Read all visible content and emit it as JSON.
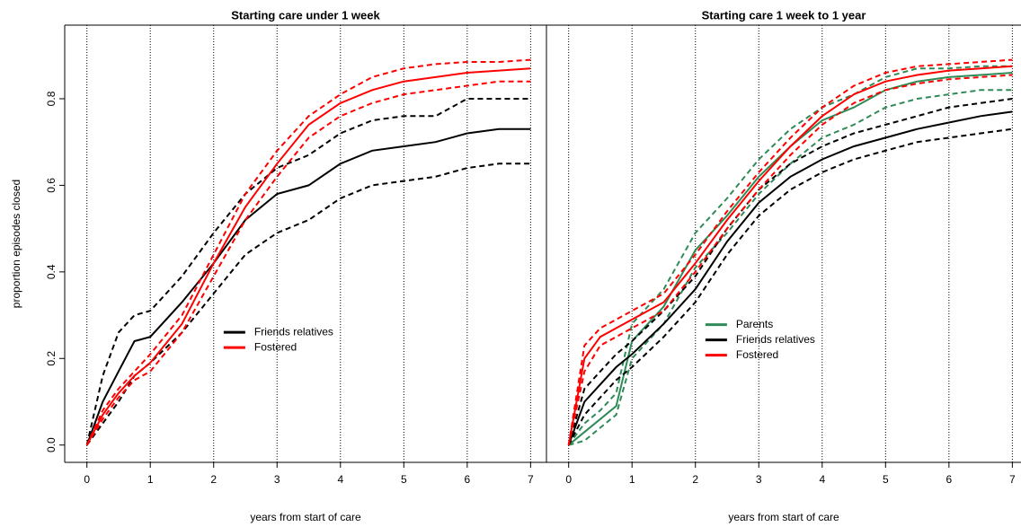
{
  "chart_data": [
    {
      "type": "line",
      "title": "Starting care under 1 week",
      "x_label": "years from start of care",
      "y_label": "proportion episodes closed",
      "x": [
        0,
        0.25,
        0.5,
        0.75,
        1,
        1.5,
        2,
        2.5,
        3,
        3.5,
        4,
        4.5,
        5,
        5.5,
        6,
        6.5,
        7
      ],
      "xlim": [
        -0.35,
        7.25
      ],
      "ylim": [
        -0.04,
        0.97
      ],
      "xticks": [
        0,
        1,
        2,
        3,
        4,
        5,
        6,
        7
      ],
      "yticks": [
        {
          "value": 0,
          "label": "0.0"
        },
        0.2,
        0.4,
        0.6,
        0.8
      ],
      "grid": "x",
      "legend": "center",
      "series": [
        {
          "name": "Friends relatives",
          "color": "#000000",
          "values": [
            0,
            0.1,
            0.17,
            0.24,
            0.25,
            0.33,
            0.42,
            0.52,
            0.58,
            0.6,
            0.65,
            0.68,
            0.69,
            0.7,
            0.72,
            0.73,
            0.73
          ],
          "lower": [
            0,
            0.05,
            0.1,
            0.16,
            0.19,
            0.26,
            0.35,
            0.44,
            0.49,
            0.52,
            0.57,
            0.6,
            0.61,
            0.62,
            0.64,
            0.65,
            0.65
          ],
          "upper": [
            0,
            0.16,
            0.26,
            0.3,
            0.31,
            0.39,
            0.49,
            0.58,
            0.64,
            0.67,
            0.72,
            0.75,
            0.76,
            0.76,
            0.8,
            0.8,
            0.8
          ]
        },
        {
          "name": "Fostered",
          "color": "#ff0000",
          "values": [
            0,
            0.07,
            0.12,
            0.16,
            0.19,
            0.28,
            0.42,
            0.55,
            0.65,
            0.74,
            0.79,
            0.82,
            0.84,
            0.85,
            0.86,
            0.865,
            0.87
          ],
          "lower": [
            0,
            0.06,
            0.11,
            0.15,
            0.17,
            0.26,
            0.39,
            0.52,
            0.62,
            0.71,
            0.76,
            0.79,
            0.81,
            0.82,
            0.83,
            0.84,
            0.84
          ],
          "upper": [
            0,
            0.08,
            0.13,
            0.17,
            0.21,
            0.3,
            0.44,
            0.58,
            0.68,
            0.76,
            0.81,
            0.85,
            0.87,
            0.88,
            0.885,
            0.885,
            0.89
          ]
        }
      ]
    },
    {
      "type": "line",
      "title": "Starting care 1 week to 1 year",
      "x_label": "years from start of care",
      "x": [
        0,
        0.25,
        0.5,
        0.75,
        1,
        1.5,
        2,
        2.5,
        3,
        3.5,
        4,
        4.5,
        5,
        5.5,
        6,
        6.5,
        7
      ],
      "xlim": [
        -0.35,
        7.25
      ],
      "ylim": [
        -0.04,
        0.97
      ],
      "xticks": [
        0,
        1,
        2,
        3,
        4,
        5,
        6,
        7
      ],
      "grid": "x",
      "legend": "center",
      "series": [
        {
          "name": "Parents",
          "color": "#2e8b57",
          "values": [
            0,
            0.03,
            0.06,
            0.09,
            0.24,
            0.32,
            0.45,
            0.53,
            0.62,
            0.69,
            0.75,
            0.78,
            0.82,
            0.84,
            0.85,
            0.855,
            0.86
          ],
          "lower": [
            0,
            0.01,
            0.04,
            0.07,
            0.2,
            0.28,
            0.41,
            0.49,
            0.58,
            0.65,
            0.71,
            0.74,
            0.78,
            0.8,
            0.81,
            0.82,
            0.82
          ],
          "upper": [
            0,
            0.05,
            0.08,
            0.12,
            0.28,
            0.36,
            0.49,
            0.57,
            0.66,
            0.73,
            0.78,
            0.81,
            0.85,
            0.87,
            0.87,
            0.875,
            0.875
          ]
        },
        {
          "name": "Friends relatives",
          "color": "#000000",
          "values": [
            0,
            0.1,
            0.14,
            0.18,
            0.21,
            0.28,
            0.36,
            0.47,
            0.56,
            0.62,
            0.66,
            0.69,
            0.71,
            0.73,
            0.745,
            0.76,
            0.77
          ],
          "lower": [
            0,
            0.07,
            0.11,
            0.15,
            0.18,
            0.25,
            0.33,
            0.44,
            0.53,
            0.59,
            0.63,
            0.66,
            0.68,
            0.7,
            0.71,
            0.72,
            0.73
          ],
          "upper": [
            0,
            0.13,
            0.17,
            0.21,
            0.24,
            0.31,
            0.39,
            0.5,
            0.59,
            0.65,
            0.69,
            0.72,
            0.74,
            0.76,
            0.78,
            0.79,
            0.8
          ]
        },
        {
          "name": "Fostered",
          "color": "#ff0000",
          "values": [
            0,
            0.2,
            0.25,
            0.27,
            0.29,
            0.33,
            0.42,
            0.52,
            0.61,
            0.69,
            0.76,
            0.81,
            0.84,
            0.855,
            0.865,
            0.87,
            0.875
          ],
          "lower": [
            0,
            0.17,
            0.23,
            0.25,
            0.27,
            0.31,
            0.4,
            0.5,
            0.59,
            0.67,
            0.74,
            0.79,
            0.82,
            0.835,
            0.845,
            0.85,
            0.855
          ],
          "upper": [
            0,
            0.23,
            0.27,
            0.29,
            0.31,
            0.35,
            0.44,
            0.54,
            0.63,
            0.71,
            0.78,
            0.83,
            0.86,
            0.875,
            0.88,
            0.885,
            0.89
          ]
        }
      ]
    }
  ]
}
